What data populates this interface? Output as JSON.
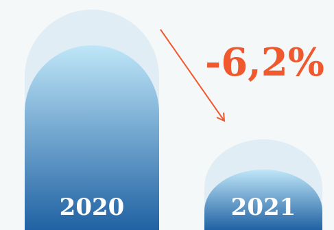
{
  "chart_data": {
    "type": "bar",
    "categories": [
      "2020",
      "2021"
    ],
    "values": [
      100,
      93.8
    ],
    "title": "",
    "xlabel": "",
    "ylabel": "",
    "annotation": "-6,2%",
    "colors": {
      "bar_top": "#bfe6f8",
      "bar_bottom": "#2062a3",
      "halo": "#dcebf4",
      "annotation": "#f0592e",
      "background": "#f5f8f9"
    }
  }
}
